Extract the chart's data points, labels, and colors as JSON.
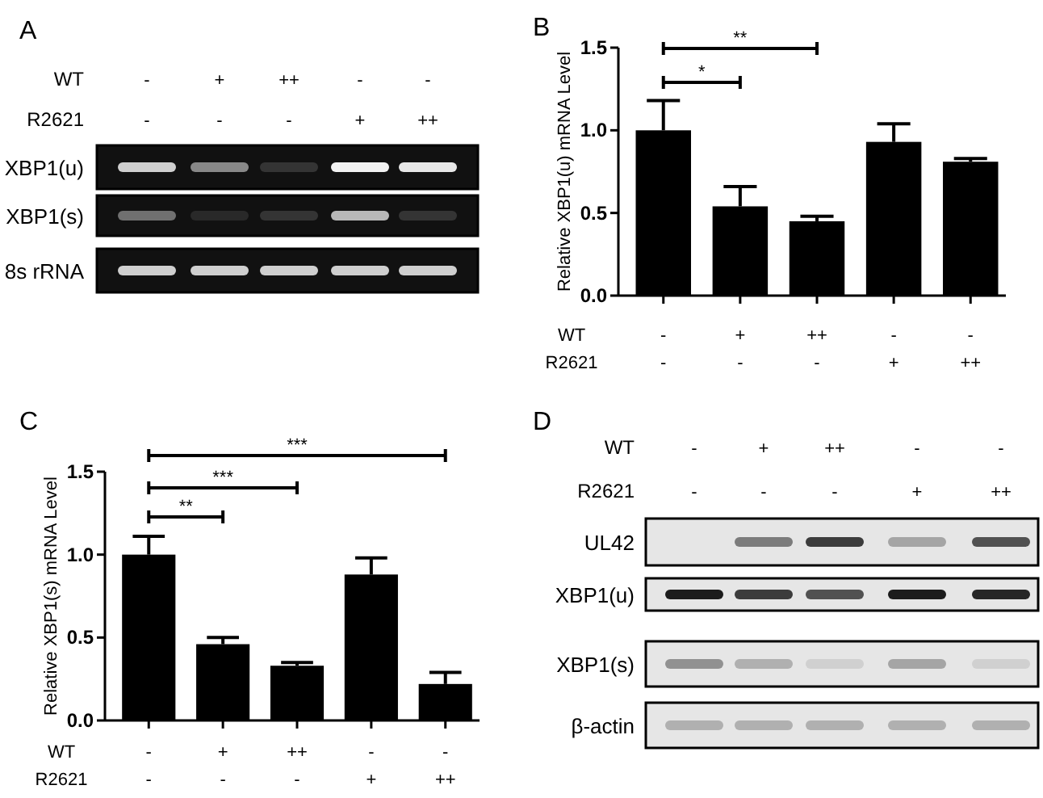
{
  "chart_data": [
    {
      "type": "other",
      "title": "A",
      "annotations": [
        "WT",
        "R2621"
      ],
      "categories": [
        "-\n-",
        "+\n-",
        "++\n-",
        "-\n+",
        "-\n++"
      ],
      "y_categories": [
        "XBP1(u)",
        "XBP1(s)",
        "8s rRNA"
      ]
    },
    {
      "type": "bar",
      "title": "B",
      "ylabel": "Relative XBP1(u) mRNA Level",
      "categories": [
        "-\n-",
        "+\n-",
        "++\n-",
        "-\n+",
        "-\n++"
      ],
      "values": [
        1.0,
        0.54,
        0.45,
        0.93,
        0.81
      ],
      "errors": [
        [
          1.0,
          1.18
        ],
        [
          0.54,
          0.66
        ],
        [
          0.45,
          0.48
        ],
        [
          0.93,
          1.04
        ],
        [
          0.81,
          0.83
        ]
      ],
      "color": "#000000",
      "ylim": [
        0,
        1.5
      ],
      "yticks": [
        {
          "value": 0,
          "label": "0.0"
        },
        {
          "value": 0.5,
          "label": "0.5"
        },
        {
          "value": 1,
          "label": "1.0"
        },
        {
          "value": 1.5,
          "label": "1.5"
        }
      ],
      "annotations": [
        "WT",
        "R2621",
        "*",
        "**"
      ]
    },
    {
      "type": "bar",
      "title": "C",
      "ylabel": "Relative XBP1(s) mRNA Level",
      "categories": [
        "-\n-",
        "+\n-",
        "++\n-",
        "-\n+",
        "-\n++"
      ],
      "values": [
        1.0,
        0.46,
        0.33,
        0.88,
        0.22
      ],
      "errors": [
        [
          1.0,
          1.11
        ],
        [
          0.46,
          0.5
        ],
        [
          0.33,
          0.35
        ],
        [
          0.88,
          0.98
        ],
        [
          0.22,
          0.29
        ]
      ],
      "color": "#000000",
      "ylim": [
        0,
        1.5
      ],
      "yticks": [
        {
          "value": 0,
          "label": "0.0"
        },
        {
          "value": 0.5,
          "label": "0.5"
        },
        {
          "value": 1,
          "label": "1.0"
        },
        {
          "value": 1.5,
          "label": "1.5"
        }
      ],
      "annotations": [
        "WT",
        "R2621",
        "**",
        "***",
        "***"
      ]
    },
    {
      "type": "other",
      "title": "D",
      "annotations": [
        "WT",
        "R2621"
      ],
      "categories": [
        "-\n-",
        "+\n-",
        "++\n-",
        "-\n+",
        "-\n++"
      ],
      "y_categories": [
        "UL42",
        "XBP1(u)",
        "XBP1(s)",
        "β-actin"
      ]
    }
  ]
}
